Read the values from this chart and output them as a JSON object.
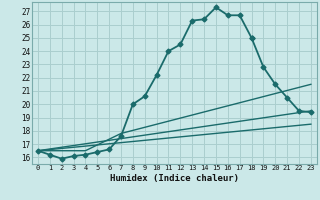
{
  "title": "",
  "xlabel": "Humidex (Indice chaleur)",
  "xlim": [
    -0.5,
    23.5
  ],
  "ylim": [
    15.5,
    27.7
  ],
  "xticks": [
    0,
    1,
    2,
    3,
    4,
    5,
    6,
    7,
    8,
    9,
    10,
    11,
    12,
    13,
    14,
    15,
    16,
    17,
    18,
    19,
    20,
    21,
    22,
    23
  ],
  "yticks": [
    16,
    17,
    18,
    19,
    20,
    21,
    22,
    23,
    24,
    25,
    26,
    27
  ],
  "background_color": "#cbe8e8",
  "grid_color": "#aacece",
  "line_color": "#1a6b6b",
  "series": [
    {
      "x": [
        0,
        1,
        2,
        3,
        4,
        5,
        6,
        7,
        8,
        9,
        10,
        11,
        12,
        13,
        14,
        15,
        16,
        17,
        18
      ],
      "y": [
        16.5,
        16.2,
        15.9,
        16.1,
        16.2,
        16.4,
        16.6,
        17.6,
        20.0,
        20.6,
        22.2,
        24.0,
        24.5,
        26.3,
        26.4,
        27.3,
        26.7,
        26.7,
        25.0
      ],
      "marker": "D",
      "markersize": 2.5,
      "linewidth": 1.3
    },
    {
      "x": [
        18,
        19,
        20,
        21,
        22,
        23
      ],
      "y": [
        25.0,
        22.8,
        21.5,
        20.5,
        19.5,
        19.4
      ],
      "marker": "D",
      "markersize": 2.5,
      "linewidth": 1.3
    },
    {
      "x": [
        0,
        4,
        7,
        23
      ],
      "y": [
        16.5,
        16.5,
        17.8,
        21.5
      ],
      "marker": null,
      "markersize": 0,
      "linewidth": 1.0
    },
    {
      "x": [
        0,
        23
      ],
      "y": [
        16.5,
        19.5
      ],
      "marker": null,
      "markersize": 0,
      "linewidth": 1.0
    },
    {
      "x": [
        0,
        23
      ],
      "y": [
        16.5,
        18.5
      ],
      "marker": null,
      "markersize": 0,
      "linewidth": 1.0
    }
  ]
}
